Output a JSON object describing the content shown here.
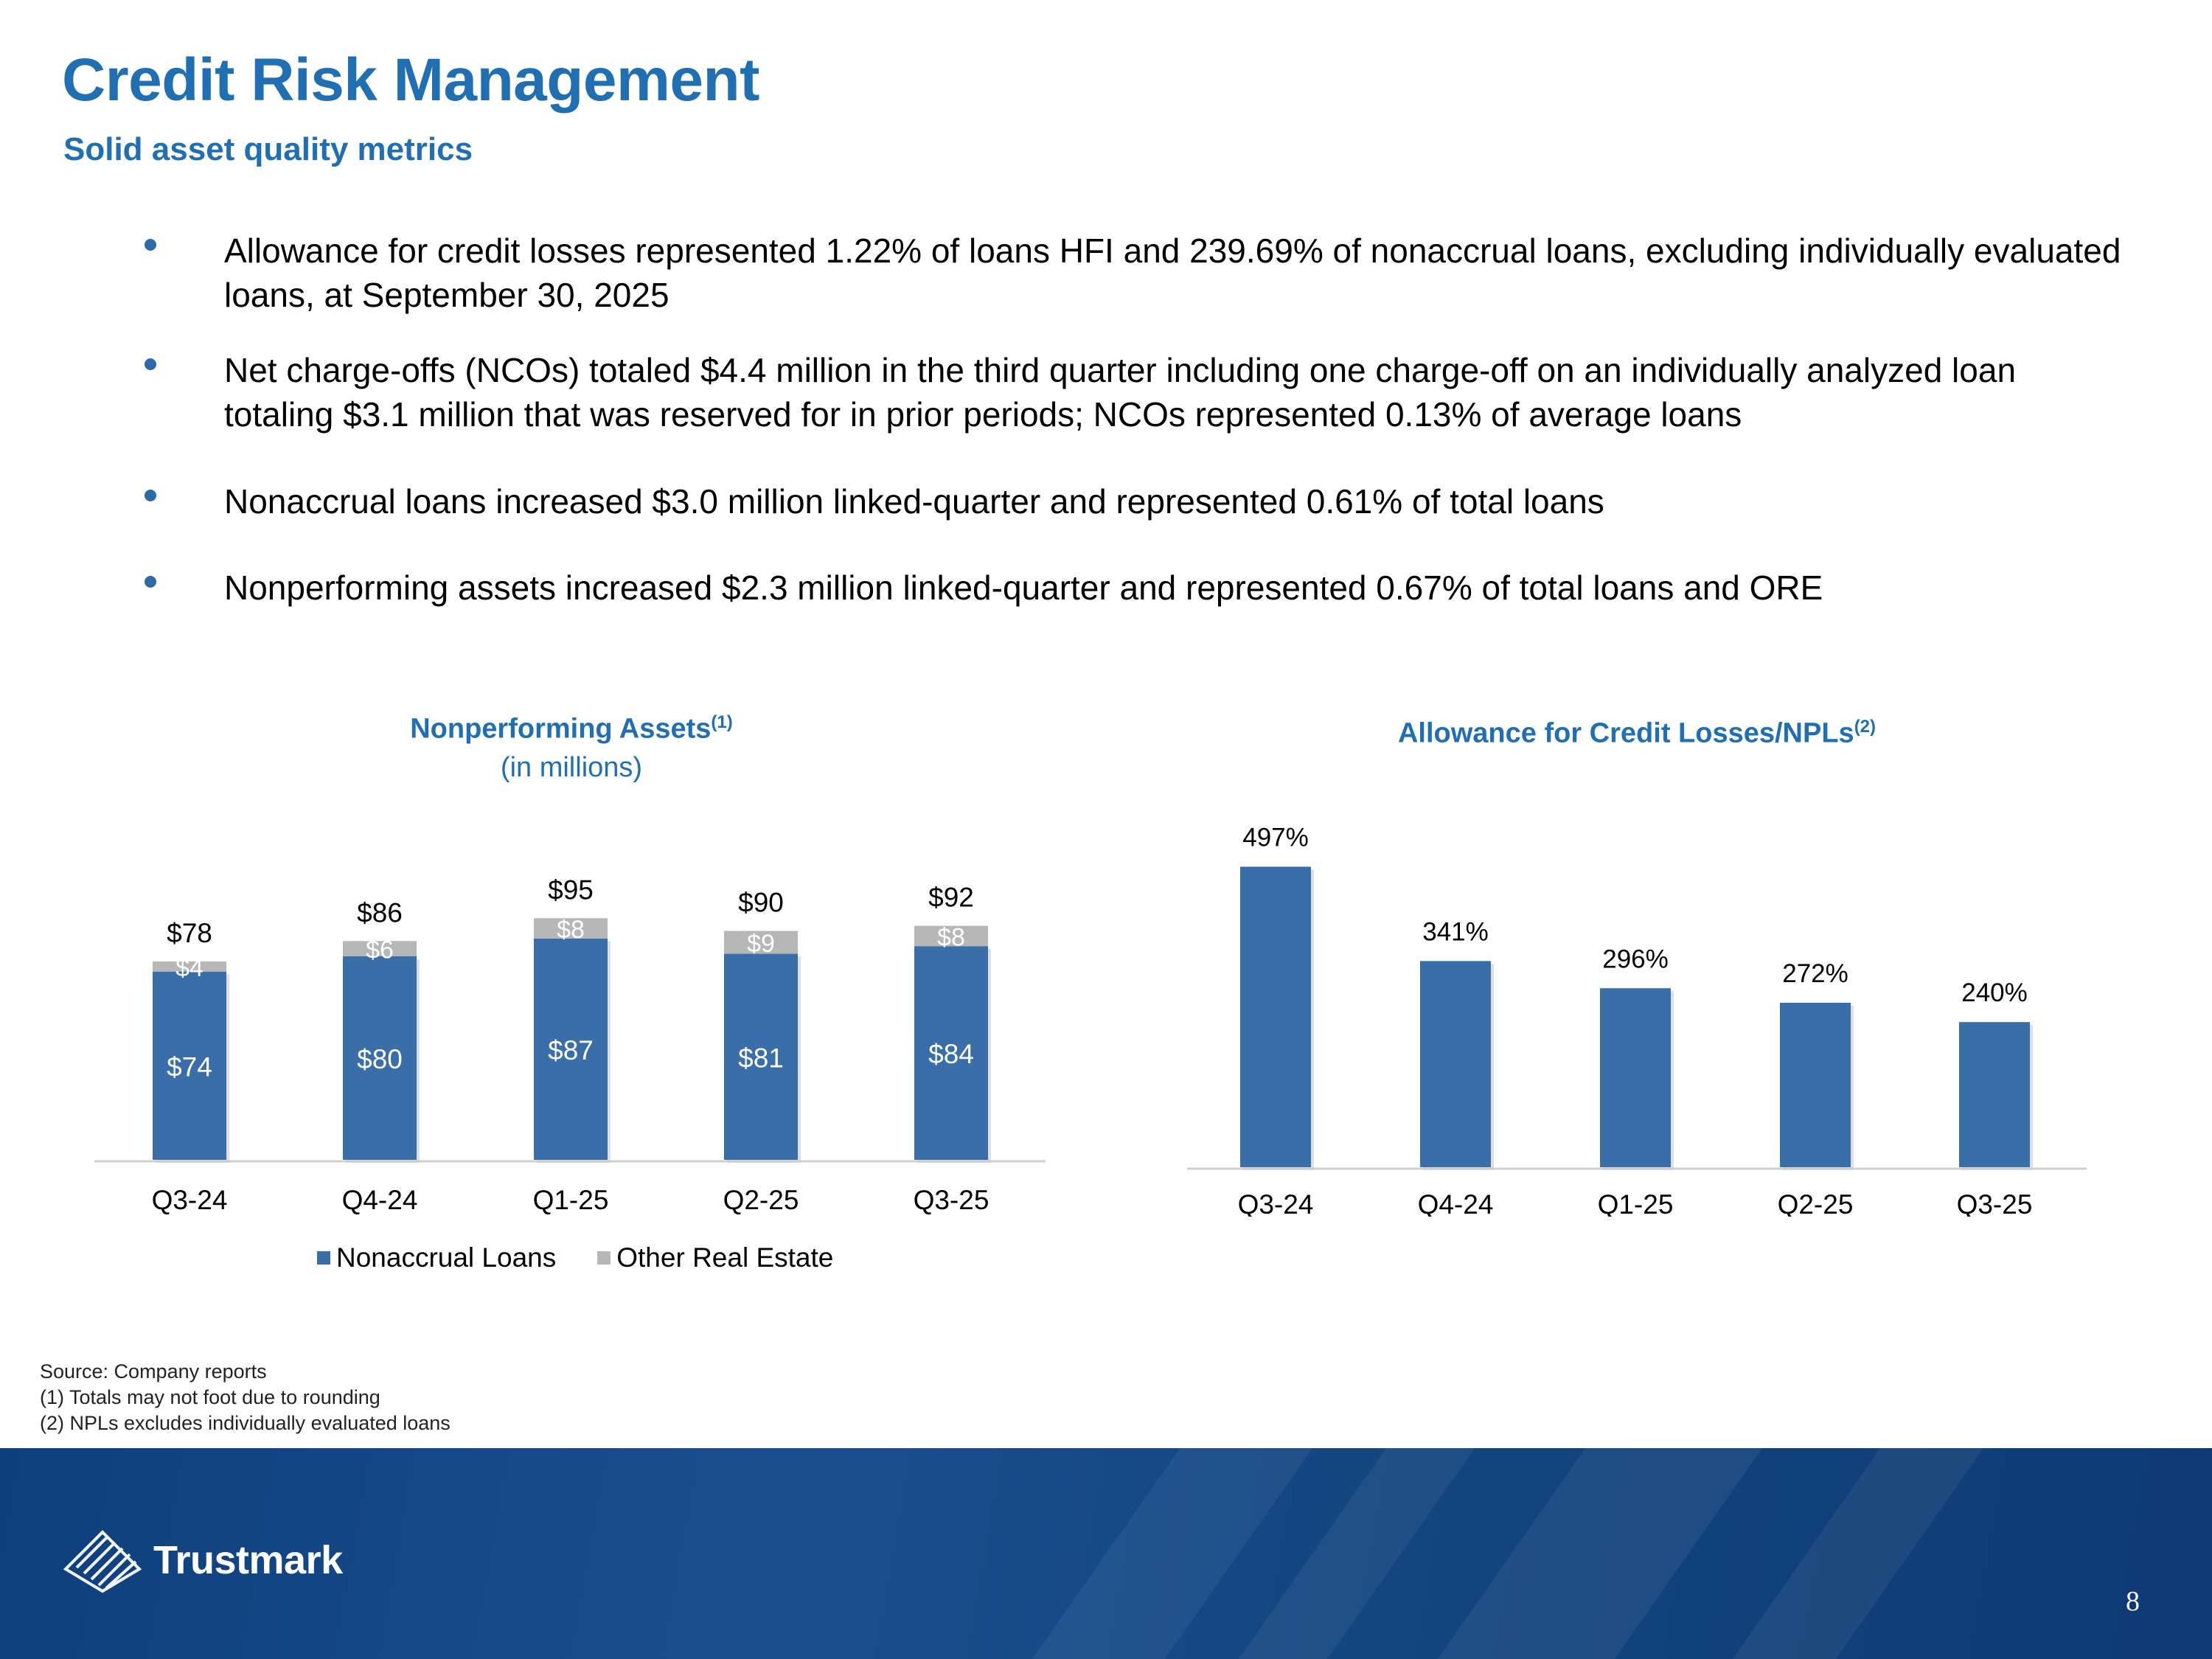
{
  "header": {
    "title": "Credit Risk Management",
    "subtitle": "Solid asset quality metrics"
  },
  "bullets": [
    "Allowance for credit losses represented 1.22% of loans HFI and 239.69% of nonaccrual loans, excluding individually evaluated loans, at September 30, 2025",
    "Net charge-offs (NCOs) totaled $4.4 million in the third quarter including one charge-off on an individually analyzed loan totaling $3.1 million that was reserved for in prior periods; NCOs represented 0.13% of average loans",
    "Nonaccrual loans increased $3.0 million linked-quarter and represented 0.61% of total loans",
    "Nonperforming assets increased $2.3 million linked-quarter and represented 0.67% of total loans and ORE"
  ],
  "chart_data": [
    {
      "type": "bar",
      "stacked": true,
      "title": "Nonperforming Assets",
      "title_sup": "(1)",
      "subtitle": "(in millions)",
      "categories": [
        "Q3-24",
        "Q4-24",
        "Q1-25",
        "Q2-25",
        "Q3-25"
      ],
      "series": [
        {
          "name": "Nonaccrual Loans",
          "values": [
            74,
            80,
            87,
            81,
            84
          ],
          "labels": [
            "$74",
            "$80",
            "$87",
            "$81",
            "$84"
          ],
          "color": "#3a6ea8"
        },
        {
          "name": "Other Real Estate",
          "values": [
            4,
            6,
            8,
            9,
            8
          ],
          "labels": [
            "$4",
            "$6",
            "$8",
            "$9",
            "$8"
          ],
          "color": "#b7b7b7"
        }
      ],
      "totals": [
        78,
        86,
        95,
        90,
        92
      ],
      "total_labels": [
        "$78",
        "$86",
        "$95",
        "$90",
        "$92"
      ],
      "legend": "bottom",
      "grid": false
    },
    {
      "type": "bar",
      "title": "Allowance for Credit Losses/NPLs",
      "title_sup": "(2)",
      "categories": [
        "Q3-24",
        "Q4-24",
        "Q1-25",
        "Q2-25",
        "Q3-25"
      ],
      "values": [
        497,
        341,
        296,
        272,
        240
      ],
      "labels": [
        "497%",
        "341%",
        "296%",
        "272%",
        "240%"
      ],
      "color": "#3a6ea8",
      "grid": false
    }
  ],
  "footnotes": [
    "Source: Company reports",
    "(1) Totals may not foot due to rounding",
    "(2) NPLs excludes individually evaluated loans"
  ],
  "footer": {
    "logo_text": "Trustmark",
    "page_number": "8"
  }
}
